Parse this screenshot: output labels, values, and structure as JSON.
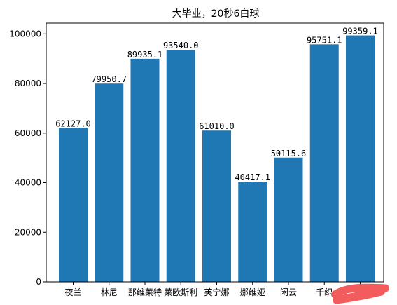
{
  "chart_data": {
    "type": "bar",
    "title": "大毕业，20秒6白球",
    "xlabel": "",
    "ylabel": "",
    "categories": [
      "夜兰",
      "林尼",
      "那维莱特",
      "莱欧斯利",
      "芙宁娜",
      "娜维娅",
      "闲云",
      "千织",
      ""
    ],
    "values": [
      62127.0,
      79950.7,
      89935.1,
      93540.0,
      61010.0,
      40417.1,
      50115.6,
      95751.1,
      99359.1
    ],
    "value_labels": [
      "62127.0",
      "79950.7",
      "89935.1",
      "93540.0",
      "61010.0",
      "40417.1",
      "50115.6",
      "95751.1",
      "99359.1"
    ],
    "ylim": [
      0,
      104328
    ],
    "yticks": [
      0,
      20000,
      40000,
      60000,
      80000,
      100000
    ],
    "ytick_labels": [
      "0",
      "20000",
      "40000",
      "60000",
      "80000",
      "100000"
    ],
    "grid": false,
    "colors": {
      "bar": "#1f77b4",
      "redaction": "#f25c5c"
    }
  }
}
